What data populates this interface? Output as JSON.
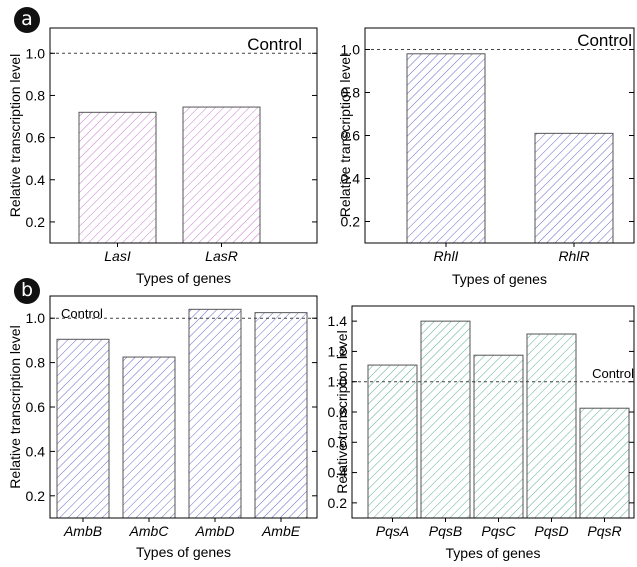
{
  "panel_labels": [
    "a",
    "b"
  ],
  "chart_data": [
    {
      "type": "bar",
      "panel": "a",
      "categories": [
        "LasI",
        "LasR"
      ],
      "values": [
        0.72,
        0.745
      ],
      "xlabel": "Types of genes",
      "ylabel": "Relative transcription level",
      "ylim": [
        0.1,
        1.12
      ],
      "yticks": [
        0.2,
        0.4,
        0.6,
        0.8,
        1.0
      ],
      "reference_line": {
        "y": 1.0,
        "label": "Control",
        "style": "dashed"
      },
      "bar_color": "#c77dcf",
      "pattern": "diagonal-hatch",
      "control_label_style": "large",
      "grid": false
    },
    {
      "type": "bar",
      "panel": "a",
      "categories": [
        "RhlI",
        "RhlR"
      ],
      "values": [
        0.98,
        0.61
      ],
      "xlabel": "Types of genes",
      "ylabel": "Relative transcription level",
      "ylim": [
        0.1,
        1.1
      ],
      "yticks": [
        0.2,
        0.4,
        0.6,
        0.8,
        1.0
      ],
      "reference_line": {
        "y": 1.0,
        "label": "Control",
        "style": "dashed"
      },
      "bar_color": "#6a6ac6",
      "pattern": "diagonal-hatch",
      "control_label_style": "large",
      "grid": false
    },
    {
      "type": "bar",
      "panel": "b",
      "categories": [
        "AmbB",
        "AmbC",
        "AmbD",
        "AmbE"
      ],
      "values": [
        0.905,
        0.825,
        1.04,
        1.025
      ],
      "xlabel": "Types of genes",
      "ylabel": "Relative transcription level",
      "ylim": [
        0.1,
        1.1
      ],
      "yticks": [
        0.2,
        0.4,
        0.6,
        0.8,
        1.0
      ],
      "reference_line": {
        "y": 1.0,
        "label": "Control",
        "style": "dashed"
      },
      "bar_color": "#6a6ac6",
      "pattern": "diagonal-hatch",
      "control_label_style": "small",
      "grid": false
    },
    {
      "type": "bar",
      "panel": "b",
      "categories": [
        "PqsA",
        "PqsB",
        "PqsC",
        "PqsD",
        "PqsR"
      ],
      "values": [
        1.11,
        1.4,
        1.175,
        1.315,
        0.825
      ],
      "xlabel": "Types of genes",
      "ylabel": "Relative transcription level",
      "ylim": [
        0.1,
        1.5
      ],
      "yticks": [
        0.2,
        0.4,
        0.6,
        0.8,
        1.0,
        1.2,
        1.4
      ],
      "reference_line": {
        "y": 1.0,
        "label": "Control",
        "style": "dashed"
      },
      "bar_color": "#5fae96",
      "pattern": "diagonal-hatch",
      "control_label_style": "small",
      "grid": false
    }
  ]
}
